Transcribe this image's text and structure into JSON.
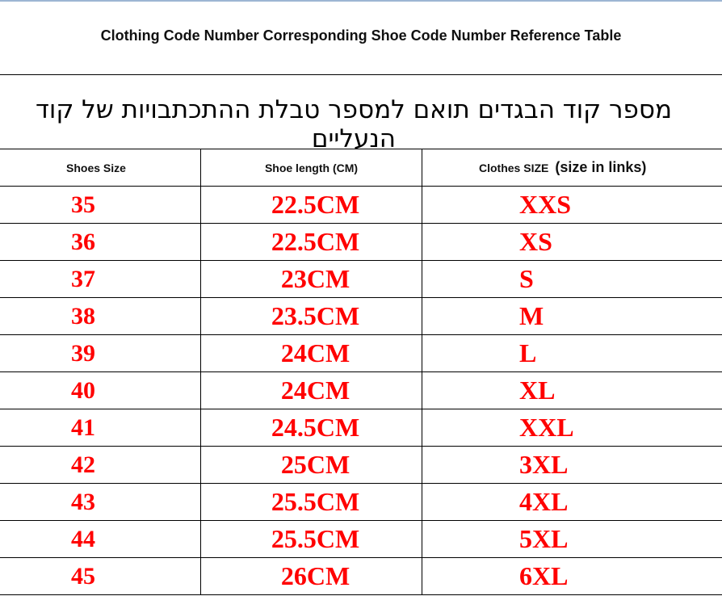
{
  "title": "Clothing Code Number Corresponding Shoe Code Number Reference Table",
  "subtitle_hebrew": "מספר קוד הבגדים תואם למספר טבלת ההתכתבויות של קוד הנעליים",
  "table": {
    "headers": {
      "shoes_size": "Shoes Size",
      "shoe_length": "Shoe length (CM)",
      "clothes_size": "Clothes SIZE",
      "clothes_size_note": "(size in links)"
    },
    "rows": [
      {
        "shoe": "35",
        "length": "22.5CM",
        "clothes": "XXS"
      },
      {
        "shoe": "36",
        "length": "22.5CM",
        "clothes": "XS"
      },
      {
        "shoe": "37",
        "length": "23CM",
        "clothes": "S"
      },
      {
        "shoe": "38",
        "length": "23.5CM",
        "clothes": "M"
      },
      {
        "shoe": "39",
        "length": "24CM",
        "clothes": "L"
      },
      {
        "shoe": "40",
        "length": "24CM",
        "clothes": "XL"
      },
      {
        "shoe": "41",
        "length": "24.5CM",
        "clothes": "XXL"
      },
      {
        "shoe": "42",
        "length": "25CM",
        "clothes": "3XL"
      },
      {
        "shoe": "43",
        "length": "25.5CM",
        "clothes": "4XL"
      },
      {
        "shoe": "44",
        "length": "25.5CM",
        "clothes": "5XL"
      },
      {
        "shoe": "45",
        "length": "26CM",
        "clothes": "6XL"
      }
    ]
  },
  "colors": {
    "value_text": "#ff0000",
    "lines": "#000000"
  }
}
